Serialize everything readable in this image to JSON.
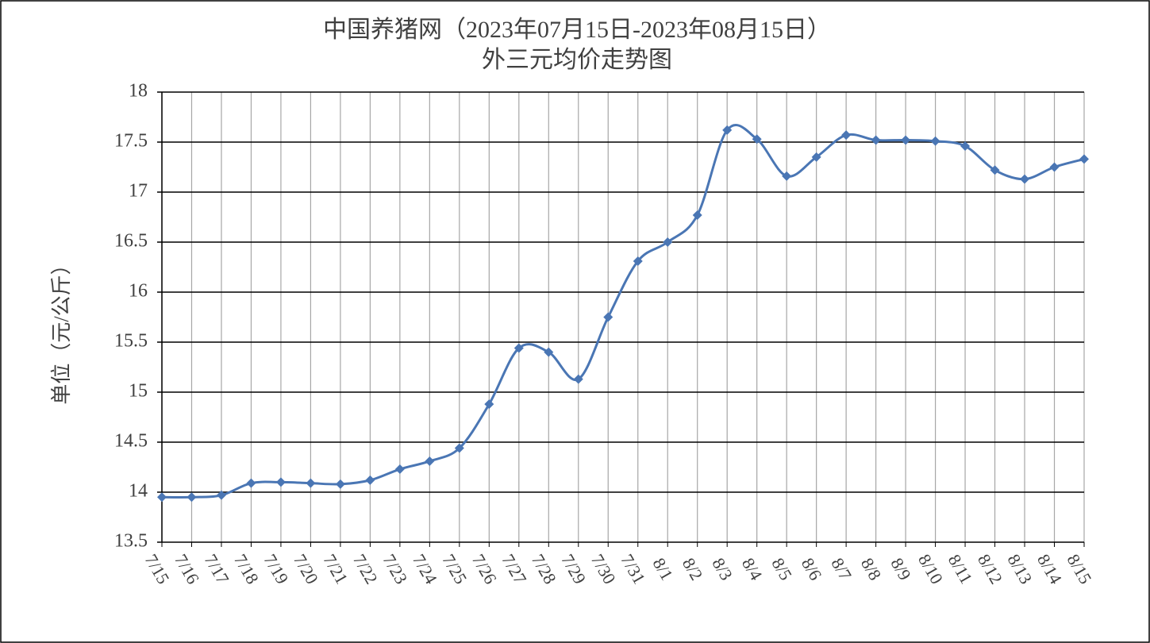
{
  "chart_data": {
    "type": "line",
    "title": "中国养猪网（2023年07月15日-2023年08月15日）",
    "subtitle": "外三元均价走势图",
    "y_label": "单位（元/公斤）",
    "categories": [
      "7/15",
      "7/16",
      "7/17",
      "7/18",
      "7/19",
      "7/20",
      "7/21",
      "7/22",
      "7/23",
      "7/24",
      "7/25",
      "7/26",
      "7/27",
      "7/28",
      "7/29",
      "7/30",
      "7/31",
      "8/1",
      "8/2",
      "8/3",
      "8/4",
      "8/5",
      "8/6",
      "8/7",
      "8/8",
      "8/9",
      "8/10",
      "8/11",
      "8/12",
      "8/13",
      "8/14",
      "8/15"
    ],
    "series": [
      {
        "color": "#4a76b4",
        "values": [
          13.95,
          13.95,
          13.97,
          14.09,
          14.1,
          14.09,
          14.08,
          14.12,
          14.23,
          14.31,
          14.44,
          14.88,
          15.44,
          15.4,
          15.13,
          15.75,
          16.31,
          16.5,
          16.77,
          17.62,
          17.53,
          17.16,
          17.35,
          17.57,
          17.52,
          17.52,
          17.51,
          17.46,
          17.22,
          17.13,
          17.25,
          17.33
        ]
      }
    ],
    "ylim": [
      13.5,
      18
    ],
    "yticks": [
      13.5,
      14,
      14.5,
      15,
      15.5,
      16,
      16.5,
      17,
      17.5,
      18
    ],
    "grid": true
  }
}
